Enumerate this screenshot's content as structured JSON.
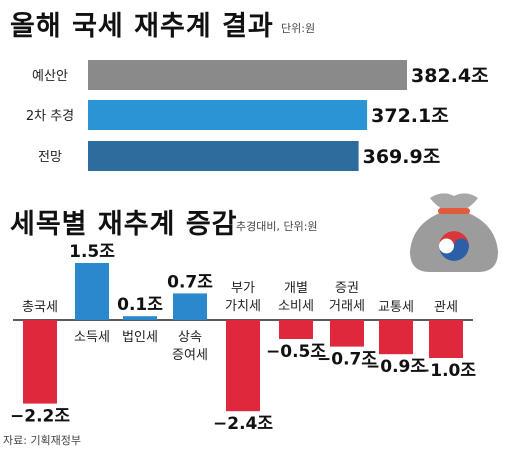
{
  "chart_data": [
    {
      "type": "bar",
      "orientation": "horizontal",
      "title": "올해 국세 재추계 결과",
      "unit_note": "단위:원",
      "categories": [
        "예산안",
        "2차 추경",
        "전망"
      ],
      "values": [
        382.4,
        372.1,
        369.9
      ],
      "value_labels": [
        "382.4조",
        "372.1조",
        "369.9조"
      ],
      "colors": [
        "#8a8a8a",
        "#2b95d3",
        "#2e6c9e"
      ]
    },
    {
      "type": "bar",
      "title": "세목별 재추계 증감",
      "unit_note": "추경대비, 단위:원",
      "categories": [
        "총국세",
        "소득세",
        "법인세",
        "상속\n증여세",
        "부가\n가치세",
        "개별\n소비세",
        "증권\n거래세",
        "교통세",
        "관세"
      ],
      "values": [
        -2.2,
        1.5,
        0.1,
        0.7,
        -2.4,
        -0.5,
        -0.7,
        -0.9,
        -1.0
      ],
      "value_labels": [
        "−2.2조",
        "1.5조",
        "0.1조",
        "0.7조",
        "−2.4조",
        "−0.5조",
        "−0.7조",
        "−0.9조",
        "−1.0조"
      ],
      "positive_color": "#2b88cc",
      "negative_color": "#e0283c",
      "axis_color": "#222222"
    }
  ],
  "source": "자료: 기획재정부"
}
